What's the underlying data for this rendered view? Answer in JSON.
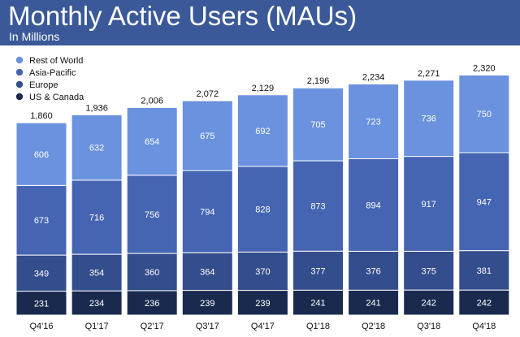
{
  "header": {
    "title": "Monthly Active Users (MAUs)",
    "subtitle": "In Millions"
  },
  "chart_data": {
    "type": "bar",
    "stacked": true,
    "title": "Monthly Active Users (MAUs)",
    "subtitle": "In Millions",
    "categories": [
      "Q4'16",
      "Q1'17",
      "Q2'17",
      "Q3'17",
      "Q4'17",
      "Q1'18",
      "Q2'18",
      "Q3'18",
      "Q4'18"
    ],
    "series": [
      {
        "name": "US & Canada",
        "color": "#1a2a4f",
        "values": [
          231,
          234,
          236,
          239,
          239,
          241,
          241,
          242,
          242
        ]
      },
      {
        "name": "Europe",
        "color": "#344d8c",
        "values": [
          349,
          354,
          360,
          364,
          370,
          377,
          376,
          375,
          381
        ]
      },
      {
        "name": "Asia-Pacific",
        "color": "#4565b3",
        "values": [
          673,
          716,
          756,
          794,
          828,
          873,
          894,
          917,
          947
        ]
      },
      {
        "name": "Rest of World",
        "color": "#6a92de",
        "values": [
          606,
          632,
          654,
          675,
          692,
          705,
          723,
          736,
          750
        ]
      }
    ],
    "totals": [
      "1,860",
      "1,936",
      "2,006",
      "2,072",
      "2,129",
      "2,196",
      "2,234",
      "2,271",
      "2,320"
    ],
    "legend": {
      "position": "top-left",
      "order": [
        "Rest of World",
        "Asia-Pacific",
        "Europe",
        "US & Canada"
      ]
    },
    "ylim": [
      0,
      2420
    ],
    "grid": false
  }
}
